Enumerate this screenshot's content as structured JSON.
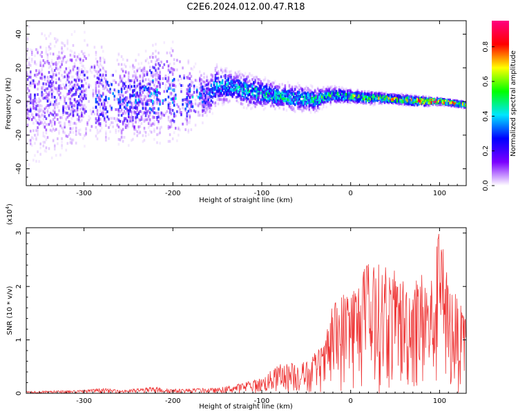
{
  "title": "C2E6.2024.012.00.47.R18",
  "chart_data": [
    {
      "type": "heatmap",
      "xlabel": "Height of straight line (km)",
      "ylabel": "Frequency (Hz)",
      "xlim": [
        -365,
        130
      ],
      "ylim": [
        -50,
        48
      ],
      "x_ticks": [
        -300,
        -200,
        -100,
        0,
        100
      ],
      "x_tick_labels": [
        "-300",
        "-200",
        "-100",
        "0",
        "100"
      ],
      "y_ticks": [
        -40,
        -20,
        0,
        20,
        40
      ],
      "y_tick_labels": [
        "-40",
        "-20",
        "0",
        "20",
        "40"
      ],
      "colorbar": {
        "label": "Normalized spectral amplitude",
        "range": [
          0.0,
          0.95
        ],
        "ticks": [
          0.0,
          0.2,
          0.4,
          0.6,
          0.8
        ],
        "tick_labels": [
          "0.0",
          "0.2",
          "0.4",
          "0.6",
          "0.8"
        ],
        "colormap": [
          "#ffffff",
          "#7b00ff",
          "#0000ff",
          "#00e6ff",
          "#00ff00",
          "#ffff00",
          "#ff0000",
          "#ff0080"
        ]
      },
      "ridge": {
        "x": [
          -365,
          -320,
          -300,
          -280,
          -260,
          -240,
          -220,
          -200,
          -180,
          -160,
          -150,
          -130,
          -110,
          -100,
          -80,
          -60,
          -40,
          -20,
          0,
          20,
          40,
          60,
          80,
          100,
          130
        ],
        "freq": [
          3,
          4,
          6,
          3,
          1,
          2,
          5,
          4,
          2,
          4,
          10,
          8,
          6,
          5,
          3,
          2,
          1,
          4,
          3,
          2,
          2,
          1,
          0,
          0,
          -2
        ],
        "half_width": [
          45,
          40,
          35,
          30,
          28,
          25,
          30,
          30,
          20,
          14,
          12,
          10,
          10,
          9,
          8,
          8,
          7,
          5,
          4,
          4,
          3,
          3,
          3,
          2,
          2
        ],
        "peak_amplitude": [
          0.2,
          0.22,
          0.25,
          0.3,
          0.3,
          0.32,
          0.35,
          0.35,
          0.35,
          0.3,
          0.4,
          0.4,
          0.45,
          0.45,
          0.45,
          0.45,
          0.48,
          0.5,
          0.55,
          0.6,
          0.7,
          0.75,
          0.85,
          0.85,
          0.6
        ]
      },
      "gaps_x": [
        [
          -297,
          -287
        ],
        [
          -275,
          -262
        ],
        [
          -213,
          -205
        ],
        [
          -197,
          -185
        ],
        [
          -178,
          -170
        ]
      ]
    },
    {
      "type": "line",
      "xlabel": "Height of straight line (km)",
      "ylabel": "SNR (10 * v/v)",
      "y_multiplier": "(x10",
      "y_multiplier_exp": "4",
      "y_multiplier_close": ")",
      "xlim": [
        -365,
        130
      ],
      "ylim": [
        0,
        3.1
      ],
      "x_ticks": [
        -300,
        -200,
        -100,
        0,
        100
      ],
      "x_tick_labels": [
        "-300",
        "-200",
        "-100",
        "0",
        "100"
      ],
      "y_ticks": [
        0,
        1,
        2,
        3
      ],
      "y_tick_labels": [
        "0",
        "1",
        "2",
        "3"
      ],
      "color": "#ee3333",
      "envelope": {
        "x": [
          -365,
          -300,
          -280,
          -260,
          -220,
          -200,
          -150,
          -120,
          -100,
          -80,
          -60,
          -45,
          -40,
          -30,
          -20,
          -10,
          0,
          10,
          20,
          40,
          60,
          80,
          90,
          100,
          110,
          120,
          130
        ],
        "y": [
          0.04,
          0.06,
          0.1,
          0.06,
          0.12,
          0.08,
          0.1,
          0.2,
          0.3,
          0.55,
          0.6,
          0.6,
          0.8,
          0.9,
          1.7,
          1.9,
          2.1,
          2.2,
          2.5,
          2.4,
          2.2,
          2.3,
          2.2,
          3.05,
          2.2,
          1.8,
          1.4
        ]
      }
    }
  ]
}
